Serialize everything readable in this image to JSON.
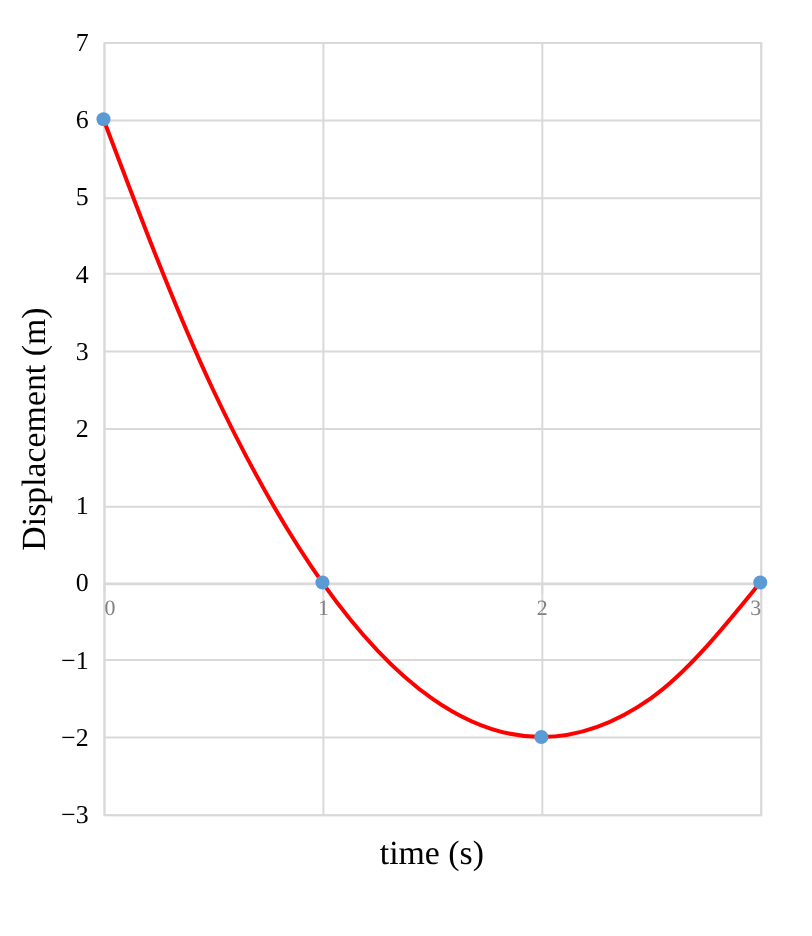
{
  "chart_data": {
    "type": "scatter",
    "xlabel": "time (s)",
    "ylabel": "Displacement (m)",
    "xlim": [
      0,
      3
    ],
    "xticks": [
      0,
      1,
      2,
      3
    ],
    "ylim": [
      -3,
      7
    ],
    "yticks": [
      -3,
      -2,
      -1,
      0,
      1,
      2,
      3,
      4,
      5,
      6,
      7
    ],
    "grid": true,
    "legend": false,
    "series": [
      {
        "type": "line",
        "color": "#ff0000",
        "marker": "none",
        "line_style": "solid",
        "x": [
          0,
          0.5,
          1,
          1.5,
          2,
          2.5,
          3
        ],
        "values": [
          6,
          2.5,
          0,
          -1.5,
          -2,
          -1.5,
          0
        ]
      },
      {
        "type": "scatter",
        "color": "#5b9bd5",
        "marker": "circle",
        "x": [
          0,
          1,
          2,
          3
        ],
        "values": [
          6,
          0,
          -2,
          0
        ]
      }
    ]
  }
}
